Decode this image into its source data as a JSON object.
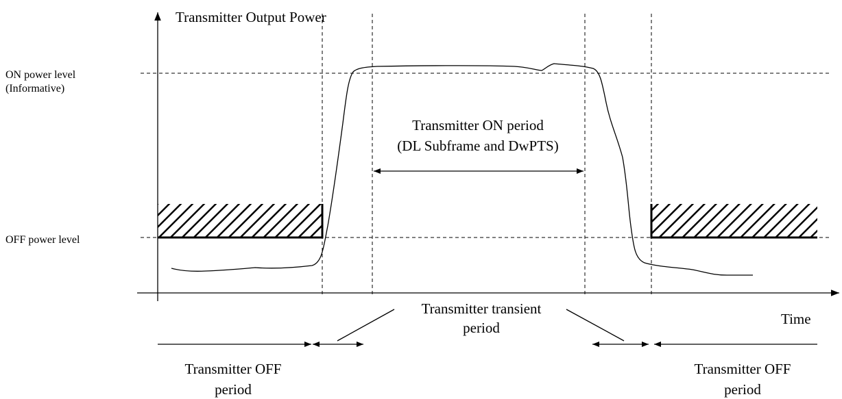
{
  "axis": {
    "y_label": "Transmitter Output Power",
    "x_label": "Time"
  },
  "levels": {
    "on": [
      "ON power level",
      "(Informative)"
    ],
    "off": "OFF power level"
  },
  "periods": {
    "on": [
      "Transmitter ON period",
      "(DL Subframe and DwPTS)"
    ],
    "transient": [
      "Transmitter transient",
      "period"
    ],
    "off_left": [
      "Transmitter OFF",
      "period"
    ],
    "off_right": [
      "Transmitter OFF",
      "period"
    ]
  }
}
